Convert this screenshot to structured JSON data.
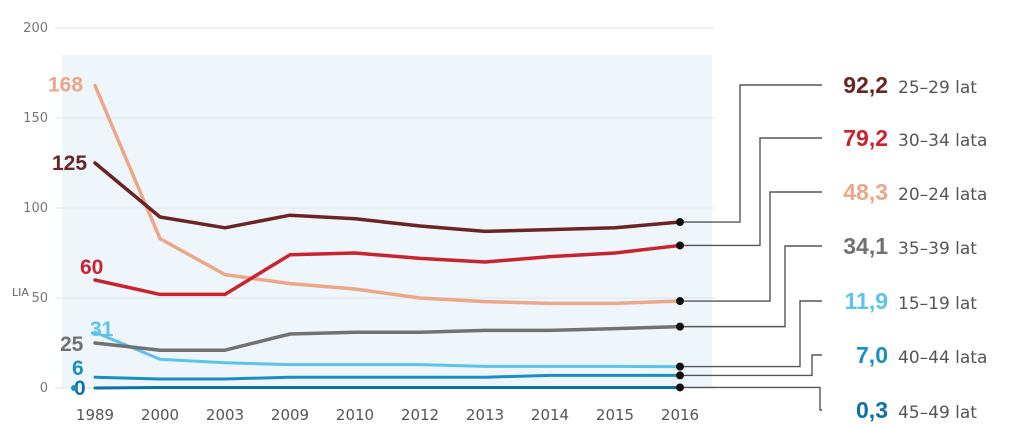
{
  "chart_data": {
    "type": "line",
    "title": "",
    "xlabel": "",
    "ylabel": "LIA",
    "ylim": [
      0,
      200
    ],
    "yticks": [
      "0",
      "50",
      "100",
      "150",
      "200"
    ],
    "categories": [
      "1989",
      "2000",
      "2003",
      "2009",
      "2010",
      "2012",
      "2013",
      "2014",
      "2015",
      "2016"
    ],
    "grid": true,
    "series": [
      {
        "name": "25–29 lat",
        "color": "#6b2424",
        "start_label": "125",
        "end_label": "92,2",
        "values": [
          125,
          95,
          89,
          96,
          94,
          90,
          87,
          88,
          89,
          92.2
        ]
      },
      {
        "name": "30–34 lata",
        "color": "#c8232e",
        "start_label": "60",
        "end_label": "79,2",
        "values": [
          60,
          52,
          52,
          74,
          75,
          72,
          70,
          73,
          75,
          79.2
        ]
      },
      {
        "name": "20–24 lata",
        "color": "#eca789",
        "start_label": "168",
        "end_label": "48,3",
        "values": [
          168,
          83,
          63,
          58,
          55,
          50,
          48,
          47,
          47,
          48.3
        ]
      },
      {
        "name": "35–39 lat",
        "color": "#717171",
        "start_label": "25",
        "end_label": "34,1",
        "values": [
          25,
          21,
          21,
          30,
          31,
          31,
          32,
          32,
          33,
          34.1
        ]
      },
      {
        "name": "15–19 lat",
        "color": "#5cc4e8",
        "start_label": "31",
        "end_label": "11,9",
        "values": [
          31,
          16,
          14,
          13,
          13,
          13,
          12,
          12,
          12,
          11.9
        ]
      },
      {
        "name": "40–44 lata",
        "color": "#1b8fc4",
        "start_label": "6",
        "end_label": "7,0",
        "values": [
          6,
          5,
          5,
          6,
          6,
          6,
          6,
          7,
          7,
          7.0
        ]
      },
      {
        "name": "45–49 lat",
        "color": "#0b72a8",
        "start_label": "0",
        "end_label": "0,3",
        "values": [
          0,
          0.3,
          0.3,
          0.3,
          0.3,
          0.3,
          0.3,
          0.3,
          0.3,
          0.3
        ]
      }
    ]
  }
}
